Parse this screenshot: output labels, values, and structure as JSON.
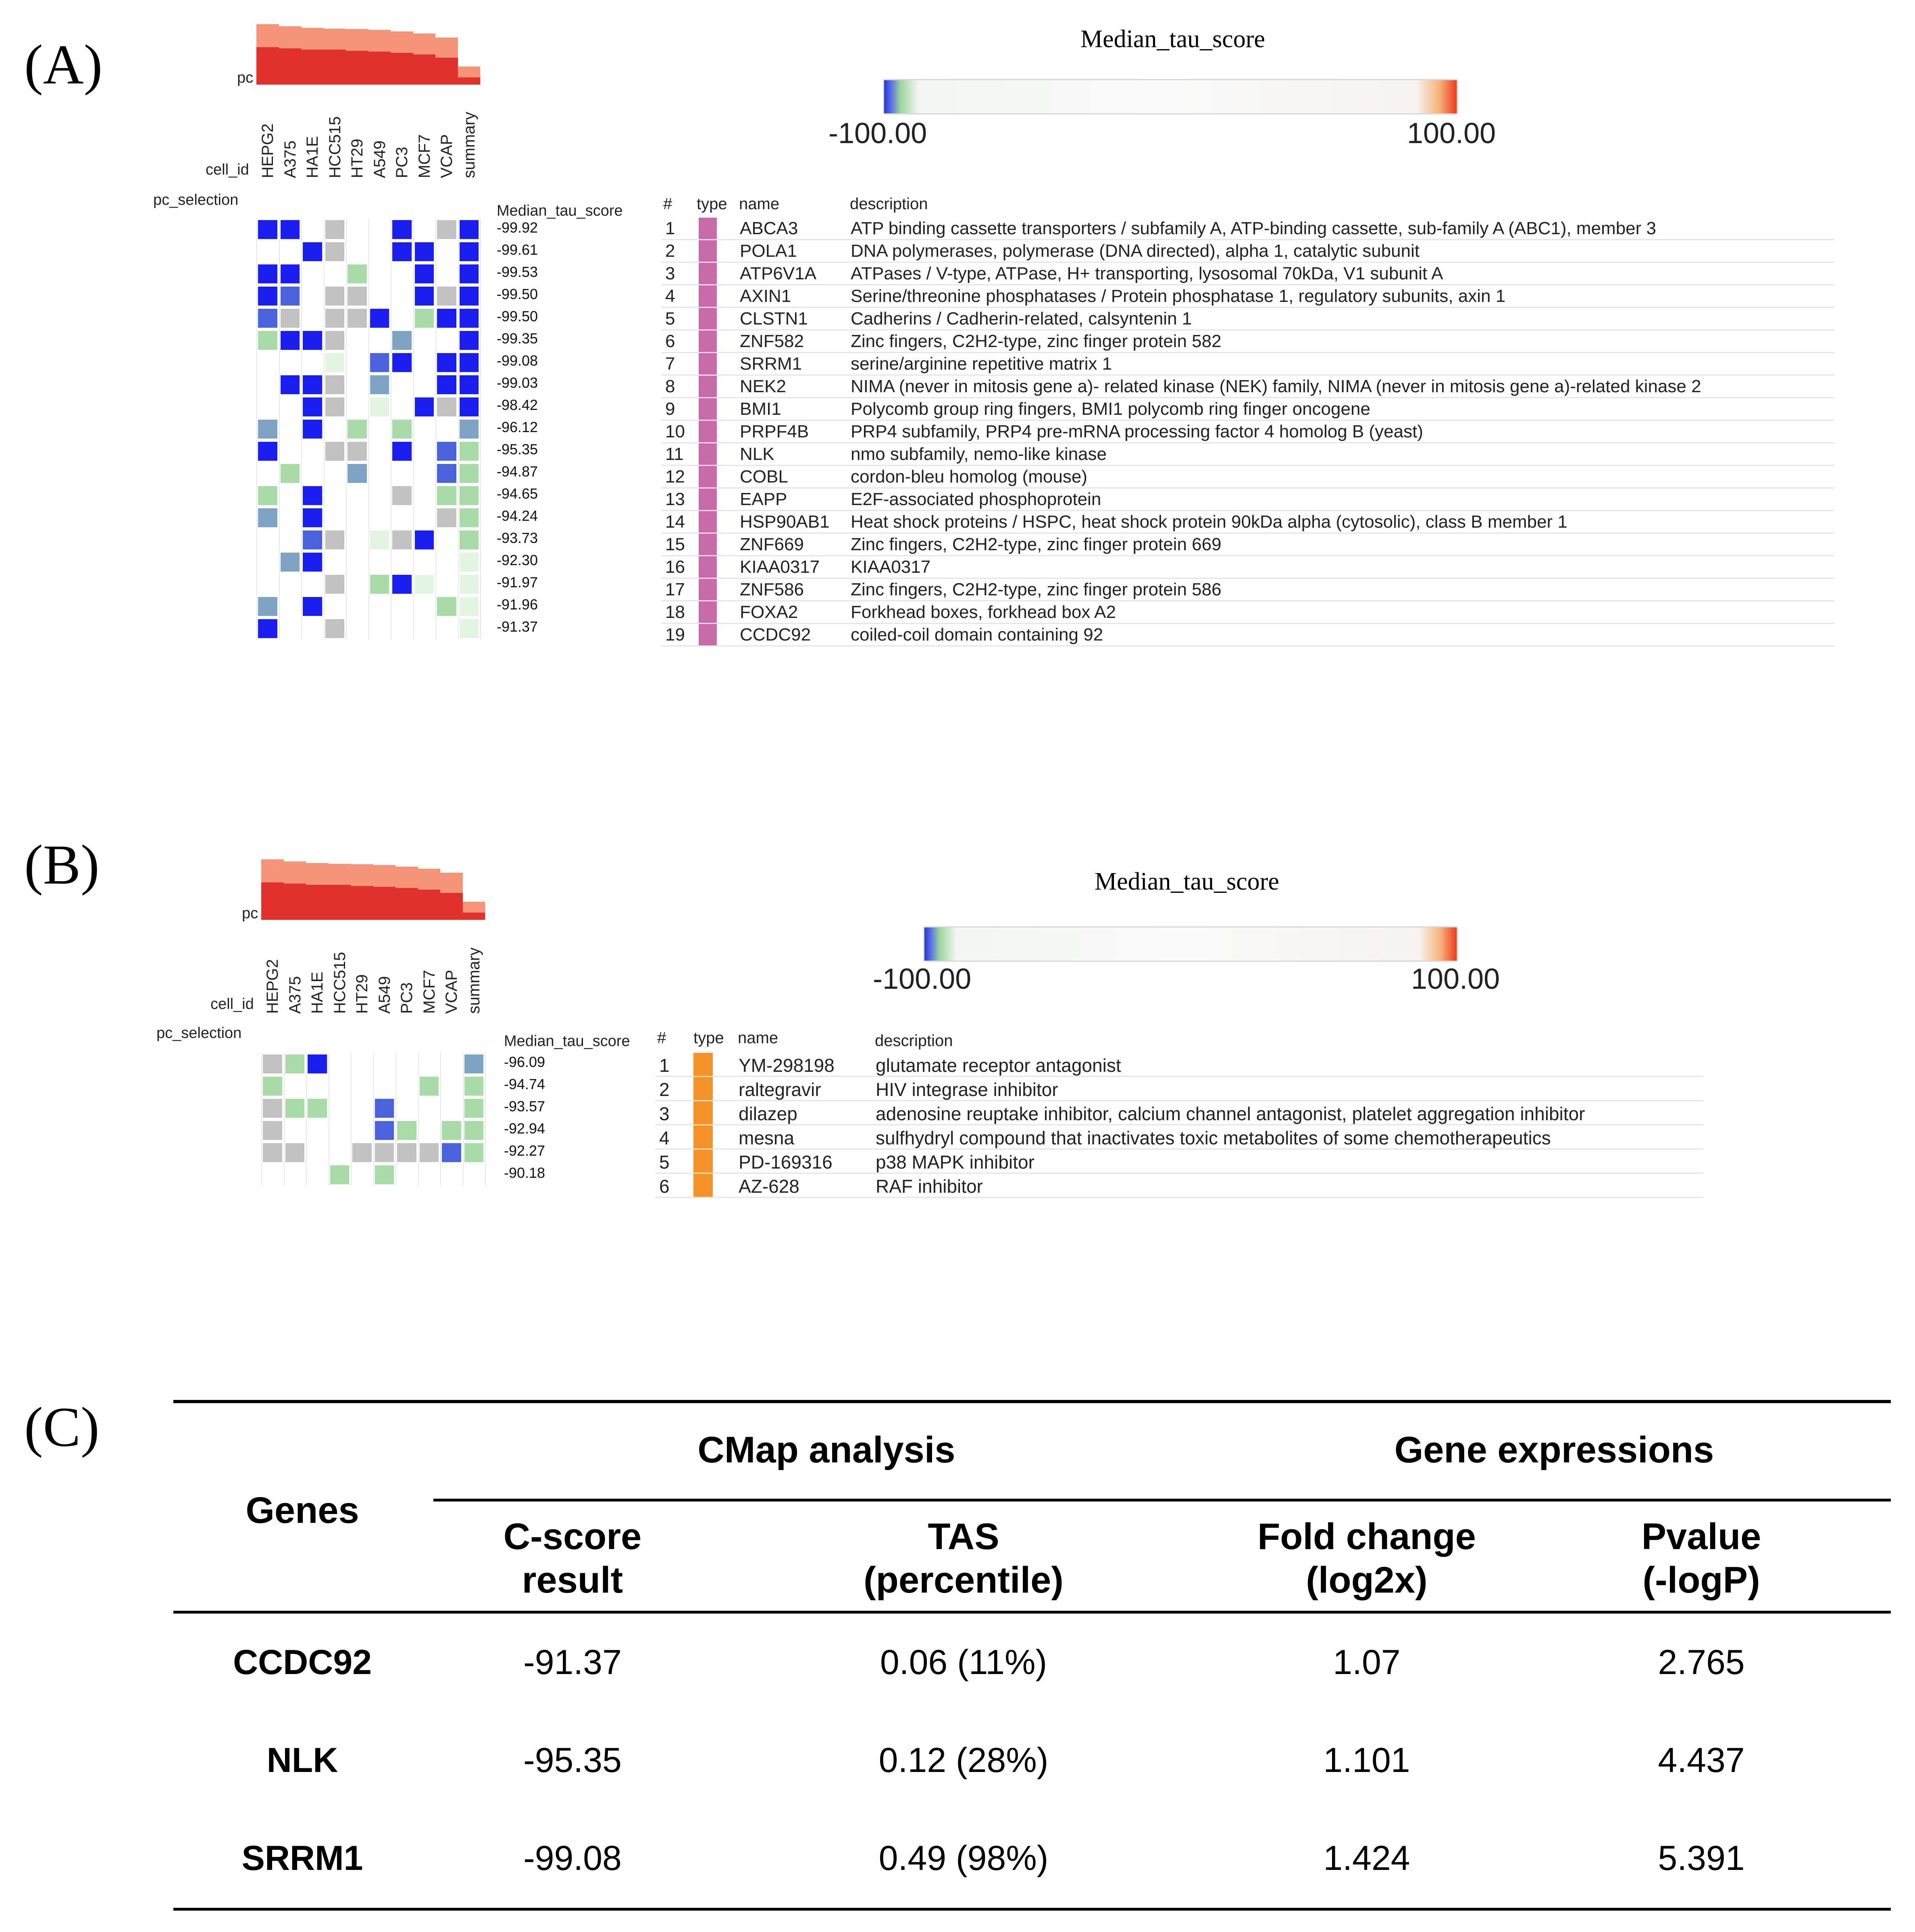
{
  "panels": {
    "A": {
      "label": "(A)",
      "colorbar": {
        "title": "Median_tau_score",
        "min_label": "-100.00",
        "max_label": "100.00",
        "low_color": "#2733e0",
        "high_color": "#ee3a20"
      },
      "pc_label": "pc",
      "cell_id_label": "cell_id",
      "pc_selection_label": "pc_selection",
      "score_header": "Median_tau_score",
      "cell_ids": [
        "HEPG2",
        "A375",
        "HA1E",
        "HCC515",
        "HT29",
        "A549",
        "PC3",
        "MCF7",
        "VCAP",
        "summary"
      ],
      "pc_bar_values": [
        1.0,
        0.97,
        0.94,
        0.93,
        0.92,
        0.91,
        0.88,
        0.85,
        0.78,
        0.3
      ],
      "pc_bar_inner_values": [
        0.62,
        0.6,
        0.58,
        0.58,
        0.56,
        0.55,
        0.53,
        0.5,
        0.45,
        0.12
      ],
      "scores": [
        "-99.92",
        "-99.61",
        "-99.53",
        "-99.50",
        "-99.50",
        "-99.35",
        "-99.08",
        "-99.03",
        "-98.42",
        "-96.12",
        "-95.35",
        "-94.87",
        "-94.65",
        "-94.24",
        "-93.73",
        "-92.30",
        "-91.97",
        "-91.96",
        "-91.37"
      ],
      "heatmap": [
        [
          "b",
          "b",
          "",
          "g",
          "",
          "",
          "b",
          "",
          "g",
          "b"
        ],
        [
          "",
          "",
          "b",
          "g",
          "",
          "",
          "b",
          "b",
          "",
          "b"
        ],
        [
          "b",
          "b",
          "",
          "",
          "lg",
          "",
          "",
          "b",
          "",
          "b"
        ],
        [
          "b",
          "mb",
          "",
          "g",
          "g",
          "",
          "",
          "b",
          "g",
          "b"
        ],
        [
          "mb",
          "g",
          "",
          "g",
          "g",
          "b",
          "",
          "lg",
          "b",
          "b"
        ],
        [
          "lg",
          "b",
          "b",
          "g",
          "",
          "",
          "sb",
          "",
          "",
          "b"
        ],
        [
          "",
          "",
          "",
          "vlg",
          "",
          "mb",
          "b",
          "",
          "b",
          "b"
        ],
        [
          "",
          "b",
          "b",
          "g",
          "",
          "sb",
          "",
          "",
          "b",
          "b"
        ],
        [
          "",
          "",
          "b",
          "g",
          "",
          "vlg",
          "",
          "b",
          "g",
          "b"
        ],
        [
          "sb",
          "",
          "b",
          "",
          "lg",
          "",
          "lg",
          "",
          "",
          "sb"
        ],
        [
          "b",
          "",
          "",
          "g",
          "g",
          "",
          "b",
          "",
          "mb",
          "lg"
        ],
        [
          "",
          "lg",
          "",
          "",
          "sb",
          "",
          "",
          "",
          "mb",
          "lg"
        ],
        [
          "lg",
          "",
          "b",
          "",
          "",
          "",
          "g",
          "",
          "lg",
          "lg"
        ],
        [
          "sb",
          "",
          "b",
          "",
          "",
          "",
          "",
          "",
          "g",
          "lg"
        ],
        [
          "",
          "",
          "mb",
          "g",
          "",
          "vlg",
          "g",
          "b",
          "",
          "lg"
        ],
        [
          "",
          "sb",
          "b",
          "",
          "",
          "",
          "",
          "",
          "",
          "vlg"
        ],
        [
          "",
          "",
          "",
          "g",
          "",
          "lg",
          "b",
          "vlg",
          "",
          "vlg"
        ],
        [
          "sb",
          "",
          "b",
          "",
          "",
          "",
          "",
          "",
          "lg",
          "vlg"
        ],
        [
          "b",
          "",
          "",
          "g",
          "",
          "",
          "",
          "",
          "",
          "vlg"
        ]
      ],
      "table": {
        "headers": {
          "num": "#",
          "type": "type",
          "name": "name",
          "description": "description"
        },
        "type_color": "#c76aa8",
        "rows": [
          {
            "num": "1",
            "name": "ABCA3",
            "description": "ATP binding cassette transporters / subfamily A, ATP-binding cassette, sub-family A (ABC1), member 3"
          },
          {
            "num": "2",
            "name": "POLA1",
            "description": "DNA polymerases, polymerase (DNA directed), alpha 1, catalytic subunit"
          },
          {
            "num": "3",
            "name": "ATP6V1A",
            "description": "ATPases / V-type, ATPase, H+ transporting, lysosomal 70kDa, V1 subunit A"
          },
          {
            "num": "4",
            "name": "AXIN1",
            "description": "Serine/threonine phosphatases / Protein phosphatase 1, regulatory subunits, axin 1"
          },
          {
            "num": "5",
            "name": "CLSTN1",
            "description": "Cadherins / Cadherin-related, calsyntenin 1"
          },
          {
            "num": "6",
            "name": "ZNF582",
            "description": "Zinc fingers, C2H2-type, zinc finger protein 582"
          },
          {
            "num": "7",
            "name": "SRRM1",
            "description": "serine/arginine repetitive matrix 1"
          },
          {
            "num": "8",
            "name": "NEK2",
            "description": "NIMA (never in mitosis gene a)- related kinase (NEK) family, NIMA (never in mitosis gene a)-related kinase 2"
          },
          {
            "num": "9",
            "name": "BMI1",
            "description": "Polycomb group ring fingers, BMI1 polycomb ring finger oncogene"
          },
          {
            "num": "10",
            "name": "PRPF4B",
            "description": "PRP4 subfamily, PRP4 pre-mRNA processing factor 4 homolog B (yeast)"
          },
          {
            "num": "11",
            "name": "NLK",
            "description": "nmo subfamily, nemo-like kinase"
          },
          {
            "num": "12",
            "name": "COBL",
            "description": "cordon-bleu homolog (mouse)"
          },
          {
            "num": "13",
            "name": "EAPP",
            "description": "E2F-associated phosphoprotein"
          },
          {
            "num": "14",
            "name": "HSP90AB1",
            "description": "Heat shock proteins / HSPC, heat shock protein 90kDa alpha (cytosolic), class B member 1"
          },
          {
            "num": "15",
            "name": "ZNF669",
            "description": "Zinc fingers, C2H2-type, zinc finger protein 669"
          },
          {
            "num": "16",
            "name": "KIAA0317",
            "description": "KIAA0317"
          },
          {
            "num": "17",
            "name": "ZNF586",
            "description": "Zinc fingers, C2H2-type, zinc finger protein 586"
          },
          {
            "num": "18",
            "name": "FOXA2",
            "description": "Forkhead boxes, forkhead box A2"
          },
          {
            "num": "19",
            "name": "CCDC92",
            "description": "coiled-coil domain containing 92"
          }
        ]
      }
    },
    "B": {
      "label": "(B)",
      "colorbar": {
        "title": "Median_tau_score",
        "min_label": "-100.00",
        "max_label": "100.00"
      },
      "pc_label": "pc",
      "cell_id_label": "cell_id",
      "pc_selection_label": "pc_selection",
      "score_header": "Median_tau_score",
      "cell_ids": [
        "HEPG2",
        "A375",
        "HA1E",
        "HCC515",
        "HT29",
        "A549",
        "PC3",
        "MCF7",
        "VCAP",
        "summary"
      ],
      "pc_bar_values": [
        1.0,
        0.97,
        0.94,
        0.93,
        0.92,
        0.91,
        0.88,
        0.85,
        0.78,
        0.3
      ],
      "pc_bar_inner_values": [
        0.62,
        0.6,
        0.58,
        0.58,
        0.56,
        0.55,
        0.53,
        0.5,
        0.45,
        0.12
      ],
      "scores": [
        "-96.09",
        "-94.74",
        "-93.57",
        "-92.94",
        "-92.27",
        "-90.18"
      ],
      "heatmap": [
        [
          "g",
          "lg",
          "b",
          "",
          "",
          "",
          "",
          "",
          "",
          "sb"
        ],
        [
          "lg",
          "",
          "",
          "",
          "",
          "",
          "",
          "lg",
          "",
          "lg"
        ],
        [
          "g",
          "lg",
          "lg",
          "",
          "",
          "mb",
          "",
          "",
          "",
          "lg"
        ],
        [
          "g",
          "",
          "",
          "",
          "",
          "mb",
          "lg",
          "",
          "lg",
          "lg"
        ],
        [
          "g",
          "g",
          "",
          "",
          "g",
          "g",
          "g",
          "g",
          "mb",
          "lg"
        ],
        [
          "",
          "",
          "",
          "lg",
          "",
          "lg",
          "",
          "",
          "",
          ""
        ]
      ],
      "table": {
        "headers": {
          "num": "#",
          "type": "type",
          "name": "name",
          "description": "description"
        },
        "type_color": "#f5922a",
        "rows": [
          {
            "num": "1",
            "name": "YM-298198",
            "description": "glutamate receptor antagonist"
          },
          {
            "num": "2",
            "name": "raltegravir",
            "description": "HIV integrase inhibitor"
          },
          {
            "num": "3",
            "name": "dilazep",
            "description": "adenosine reuptake inhibitor, calcium channel antagonist, platelet aggregation inhibitor"
          },
          {
            "num": "4",
            "name": "mesna",
            "description": "sulfhydryl compound that inactivates toxic metabolites of some chemotherapeutics"
          },
          {
            "num": "5",
            "name": "PD-169316",
            "description": "p38 MAPK inhibitor"
          },
          {
            "num": "6",
            "name": "AZ-628",
            "description": "RAF inhibitor"
          }
        ]
      }
    },
    "C": {
      "label": "(C)",
      "header": {
        "genes": "Genes",
        "group1": "CMap analysis",
        "group2": "Gene expressions",
        "col1_line1": "C-score",
        "col1_line2": "result",
        "col2_line1": "TAS",
        "col2_line2": "(percentile)",
        "col3_line1": "Fold change",
        "col3_line2": "(log2x)",
        "col4_line1": "Pvalue",
        "col4_line2": "(-logP)"
      },
      "rows": [
        {
          "gene": "CCDC92",
          "cscore": "-91.37",
          "tas": "0.06 (11%)",
          "fold": "1.07",
          "pvalue": "2.765"
        },
        {
          "gene": "NLK",
          "cscore": "-95.35",
          "tas": "0.12 (28%)",
          "fold": "1.101",
          "pvalue": "4.437"
        },
        {
          "gene": "SRRM1",
          "cscore": "-99.08",
          "tas": "0.49 (98%)",
          "fold": "1.424",
          "pvalue": "5.391"
        }
      ]
    }
  },
  "heat_colors": {
    "b": "#1a1ff0",
    "mb": "#4a63dd",
    "sb": "#7fa3c4",
    "g": "#c2c2c2",
    "lg": "#a8dba8",
    "vlg": "#e3f4e3"
  }
}
